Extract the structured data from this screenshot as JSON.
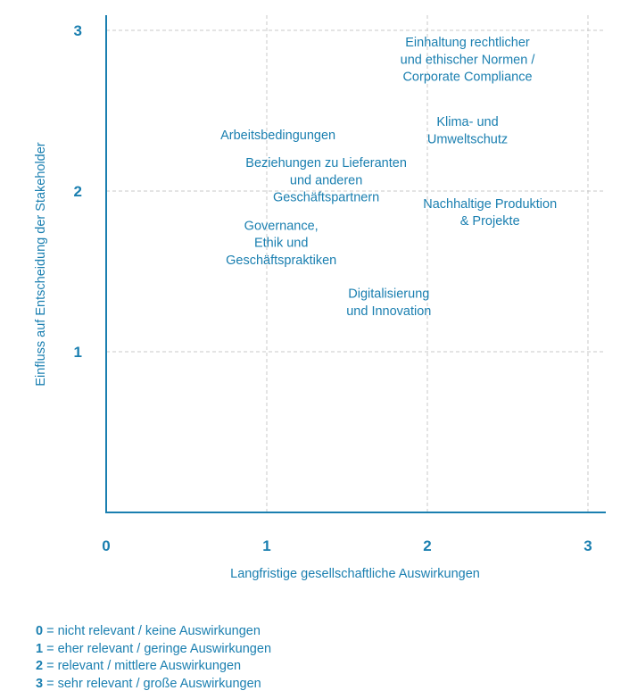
{
  "chart_data": {
    "type": "scatter",
    "title": "",
    "xlabel": "Langfristige gesellschaftliche Auswirkungen",
    "ylabel": "Einfluss auf Entscheidung der Stakeholder",
    "xlim": [
      0,
      3.1
    ],
    "ylim": [
      0,
      3.1
    ],
    "x_ticks": [
      "0",
      "1",
      "2",
      "3"
    ],
    "y_ticks": [
      "1",
      "2",
      "3"
    ],
    "grid": true,
    "points": [
      {
        "x": 2.25,
        "y": 2.82,
        "label": [
          "Einhaltung rechtlicher",
          "und ethischer Normen /",
          "Corporate Compliance"
        ]
      },
      {
        "x": 2.25,
        "y": 2.38,
        "label": [
          "Klima- und",
          "Umweltschutz"
        ]
      },
      {
        "x": 1.07,
        "y": 2.35,
        "label": [
          "Arbeitsbedingungen"
        ]
      },
      {
        "x": 1.37,
        "y": 2.07,
        "label": [
          "Beziehungen zu Lieferanten",
          "und anderen",
          "Geschäftspartnern"
        ]
      },
      {
        "x": 2.39,
        "y": 1.87,
        "label": [
          "Nachhaltige Produktion",
          "& Projekte"
        ]
      },
      {
        "x": 1.09,
        "y": 1.68,
        "label": [
          "Governance,",
          "Ethik und",
          "Geschäftspraktiken"
        ]
      },
      {
        "x": 1.76,
        "y": 1.31,
        "label": [
          "Digitalisierung",
          "und Innovation"
        ]
      }
    ],
    "colors": {
      "accent": "#1a7fb0",
      "grid": "#c8c8c8"
    }
  },
  "legend": [
    {
      "key": "0",
      "text": " = nicht relevant / keine Auswirkungen"
    },
    {
      "key": "1",
      "text": " = eher relevant / geringe Auswirkungen"
    },
    {
      "key": "2",
      "text": " = relevant / mittlere Auswirkungen"
    },
    {
      "key": "3",
      "text": " = sehr relevant / große Auswirkungen"
    }
  ]
}
